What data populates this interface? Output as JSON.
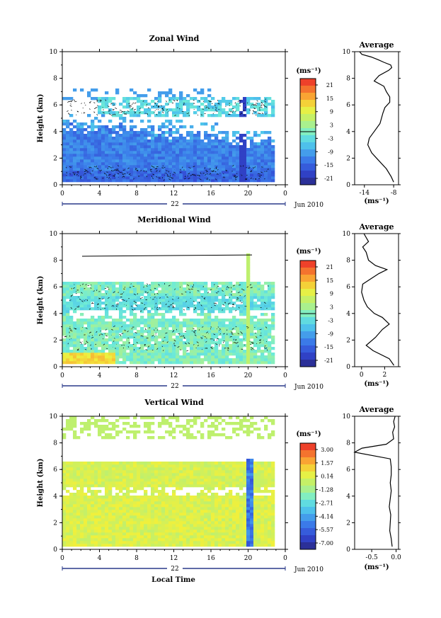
{
  "panels": [
    {
      "title": "Zonal Wind",
      "ylabel": "Height (km)",
      "unit": "(ms⁻¹)",
      "colorbar_ticks": [
        "21",
        "15",
        "9",
        "3",
        "-3",
        "-9",
        "-15",
        "-21"
      ],
      "avg_title": "Average",
      "avg_xticks": [
        "-14",
        "-8"
      ],
      "avg_xlabel": "(ms⁻¹)"
    },
    {
      "title": "Meridional Wind",
      "ylabel": "Height (km)",
      "unit": "(ms⁻¹)",
      "colorbar_ticks": [
        "21",
        "15",
        "9",
        "3",
        "-3",
        "-9",
        "-15",
        "-21"
      ],
      "avg_title": "Average",
      "avg_xticks": [
        "0",
        "2"
      ],
      "avg_xlabel": "(ms⁻¹)"
    },
    {
      "title": "Vertical Wind",
      "ylabel": "Height (km)",
      "unit": "(ms⁻¹)",
      "colorbar_ticks": [
        "3.00",
        "1.57",
        "0.14",
        "-1.28",
        "-2.71",
        "-4.14",
        "-5.57",
        "-7.00"
      ],
      "avg_title": "Average",
      "avg_xticks": [
        "-0.5",
        "0.0"
      ],
      "avg_xlabel": "(ms⁻¹)"
    }
  ],
  "time_ticks": [
    "0",
    "4",
    "8",
    "12",
    "16",
    "20",
    "0"
  ],
  "height_ticks": [
    "0",
    "2",
    "4",
    "6",
    "8",
    "10"
  ],
  "day_label": "22",
  "month_label": "Jun 2010",
  "bottom_xlabel": "Local Time",
  "chart_data": [
    {
      "type": "heatmap",
      "title": "Zonal Wind",
      "xlabel": "",
      "ylabel": "Height (km)",
      "xlim": [
        0,
        24
      ],
      "ylim": [
        0,
        10
      ],
      "colorbar_range": [
        -21,
        21
      ],
      "description_rows": [
        {
          "height_km": [
            0.3,
            4.5
          ],
          "value_ms": -12
        },
        {
          "height_km": [
            4.5,
            6.5
          ],
          "value_ms": -3
        }
      ]
    },
    {
      "type": "line",
      "title": "Average",
      "xlabel": "(ms⁻¹)",
      "ylabel": "",
      "xlim": [
        -16,
        -7
      ],
      "ylim": [
        0,
        10
      ],
      "x": [
        -8,
        -8.5,
        -9.5,
        -11,
        -12.5,
        -13.3,
        -13,
        -12,
        -10.8,
        -10.5,
        -10.2,
        -9.8,
        -8.8,
        -8.8,
        -9.5,
        -10,
        -12,
        -11,
        -9,
        -8.4,
        -8.6,
        -10,
        -11.2,
        -12.6,
        -14.5,
        -15
      ],
      "y": [
        0.2,
        0.6,
        1.2,
        1.8,
        2.4,
        3.0,
        3.5,
        4.0,
        4.6,
        5.0,
        5.4,
        5.8,
        6.2,
        6.6,
        7.0,
        7.4,
        7.8,
        8.2,
        8.6,
        8.8,
        9.0,
        9.2,
        9.4,
        9.6,
        9.8,
        10.0
      ]
    },
    {
      "type": "heatmap",
      "title": "Meridional Wind",
      "xlabel": "",
      "ylabel": "Height (km)",
      "xlim": [
        0,
        24
      ],
      "ylim": [
        0,
        10
      ],
      "colorbar_range": [
        -21,
        21
      ],
      "description_rows": [
        {
          "height_km": [
            0.3,
            1.2
          ],
          "value_ms": 5
        },
        {
          "height_km": [
            1.2,
            6.5
          ],
          "value_ms": 1
        }
      ]
    },
    {
      "type": "line",
      "title": "Average",
      "xlabel": "(ms⁻¹)",
      "ylabel": "",
      "xlim": [
        -0.6,
        3.2
      ],
      "ylim": [
        0,
        10
      ],
      "x": [
        2.8,
        2.4,
        1.0,
        0.4,
        1.2,
        1.8,
        2.4,
        1.8,
        1.1,
        0.5,
        0.2,
        0.0,
        0.1,
        0.8,
        1.5,
        2.2,
        1.2,
        0.6,
        0.4,
        0.1,
        0.6,
        0.2
      ],
      "y": [
        0.1,
        0.6,
        1.2,
        1.6,
        2.2,
        2.8,
        3.2,
        3.7,
        4.0,
        4.5,
        5.0,
        5.6,
        6.2,
        6.6,
        7.0,
        7.3,
        7.6,
        8.0,
        8.6,
        9.0,
        9.4,
        10.0
      ]
    },
    {
      "type": "heatmap",
      "title": "Vertical Wind",
      "xlabel": "Local Time",
      "ylabel": "Height (km)",
      "xlim": [
        0,
        24
      ],
      "ylim": [
        0,
        10
      ],
      "colorbar_range": [
        -7.0,
        3.0
      ],
      "description_rows": [
        {
          "height_km": [
            0.3,
            6.5
          ],
          "value_ms": 0.3
        },
        {
          "height_km": [
            8.5,
            10.0
          ],
          "value_ms": 0.2
        }
      ]
    },
    {
      "type": "line",
      "title": "Average",
      "xlabel": "(ms⁻¹)",
      "ylabel": "",
      "xlim": [
        -0.85,
        0.05
      ],
      "ylim": [
        0,
        10
      ],
      "x": [
        -0.08,
        -0.1,
        -0.13,
        -0.12,
        -0.11,
        -0.14,
        -0.12,
        -0.1,
        -0.12,
        -0.1,
        -0.1,
        -0.12,
        -0.85,
        -0.7,
        -0.2,
        -0.05,
        -0.07,
        -0.03,
        -0.05,
        -0.02
      ],
      "y": [
        0.2,
        0.8,
        1.4,
        2.0,
        2.6,
        3.2,
        3.8,
        4.4,
        5.0,
        5.6,
        6.2,
        6.8,
        7.3,
        7.6,
        7.9,
        8.3,
        8.8,
        9.2,
        9.6,
        10.0
      ]
    }
  ]
}
